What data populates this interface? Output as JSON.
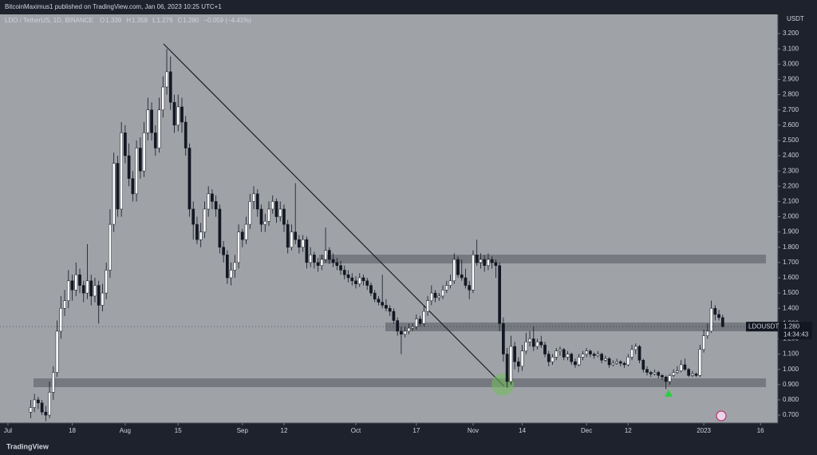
{
  "header": "BitcoinMaximus1 published on TradingView.com, Jan 06, 2023 10:25 UTC+1",
  "footer": "TradingView",
  "chart_data": {
    "type": "candlestick",
    "symbol": "LDO / TetherUS, 1D, BINANCE",
    "legend": [
      {
        "label": "O",
        "value": 1.339
      },
      {
        "label": "H",
        "value": 1.358
      },
      {
        "label": "L",
        "value": 1.276
      },
      {
        "label": "C",
        "value": 1.28,
        "value_label": "1.280"
      }
    ],
    "change": "−0.059 (−4.41%)",
    "y_unit": "USDT",
    "up_color": "#ffffff",
    "down_color": "#131722",
    "ohlc": [
      [
        0.72,
        0.8,
        0.68,
        0.75
      ],
      [
        0.75,
        0.84,
        0.72,
        0.8
      ],
      [
        0.8,
        0.82,
        0.74,
        0.78
      ],
      [
        0.78,
        0.8,
        0.7,
        0.72
      ],
      [
        0.72,
        0.76,
        0.66,
        0.7
      ],
      [
        0.7,
        0.92,
        0.68,
        0.85
      ],
      [
        0.85,
        1.02,
        0.8,
        0.98
      ],
      [
        0.98,
        1.32,
        0.95,
        1.25
      ],
      [
        1.25,
        1.48,
        1.2,
        1.4
      ],
      [
        1.4,
        1.52,
        1.35,
        1.45
      ],
      [
        1.45,
        1.65,
        1.4,
        1.58
      ],
      [
        1.58,
        1.62,
        1.45,
        1.52
      ],
      [
        1.52,
        1.7,
        1.48,
        1.62
      ],
      [
        1.62,
        1.66,
        1.5,
        1.55
      ],
      [
        1.55,
        1.58,
        1.44,
        1.5
      ],
      [
        1.5,
        1.82,
        1.46,
        1.58
      ],
      [
        1.58,
        1.62,
        1.42,
        1.48
      ],
      [
        1.48,
        1.6,
        1.44,
        1.55
      ],
      [
        1.55,
        1.58,
        1.3,
        1.42
      ],
      [
        1.42,
        1.56,
        1.38,
        1.5
      ],
      [
        1.5,
        1.7,
        1.46,
        1.65
      ],
      [
        1.65,
        2.05,
        1.6,
        1.95
      ],
      [
        1.95,
        2.42,
        1.9,
        2.35
      ],
      [
        2.35,
        2.4,
        2.0,
        2.05
      ],
      [
        2.05,
        2.62,
        2.0,
        2.55
      ],
      [
        2.55,
        2.6,
        2.35,
        2.4
      ],
      [
        2.4,
        2.48,
        2.2,
        2.25
      ],
      [
        2.25,
        2.3,
        2.1,
        2.15
      ],
      [
        2.15,
        2.5,
        2.1,
        2.45
      ],
      [
        2.45,
        2.52,
        2.25,
        2.3
      ],
      [
        2.3,
        2.62,
        2.26,
        2.55
      ],
      [
        2.55,
        2.78,
        2.5,
        2.7
      ],
      [
        2.7,
        2.75,
        2.5,
        2.55
      ],
      [
        2.55,
        2.6,
        2.4,
        2.45
      ],
      [
        2.45,
        2.78,
        2.42,
        2.7
      ],
      [
        2.7,
        2.92,
        2.65,
        2.85
      ],
      [
        2.85,
        3.1,
        2.8,
        2.95
      ],
      [
        2.95,
        3.05,
        2.7,
        2.75
      ],
      [
        2.75,
        2.8,
        2.55,
        2.6
      ],
      [
        2.6,
        2.8,
        2.56,
        2.72
      ],
      [
        2.72,
        2.78,
        2.55,
        2.62
      ],
      [
        2.62,
        2.66,
        2.4,
        2.45
      ],
      [
        2.45,
        2.48,
        2.0,
        2.05
      ],
      [
        2.05,
        2.1,
        1.85,
        1.95
      ],
      [
        1.95,
        2.0,
        1.82,
        1.85
      ],
      [
        1.85,
        1.96,
        1.8,
        1.9
      ],
      [
        1.9,
        2.1,
        1.86,
        2.05
      ],
      [
        2.05,
        2.2,
        2.0,
        2.15
      ],
      [
        2.15,
        2.18,
        2.05,
        2.1
      ],
      [
        2.1,
        2.14,
        2.0,
        2.05
      ],
      [
        2.05,
        2.08,
        1.76,
        1.8
      ],
      [
        1.8,
        1.84,
        1.7,
        1.75
      ],
      [
        1.75,
        1.78,
        1.56,
        1.6
      ],
      [
        1.6,
        1.7,
        1.55,
        1.65
      ],
      [
        1.65,
        1.75,
        1.6,
        1.7
      ],
      [
        1.7,
        1.95,
        1.66,
        1.9
      ],
      [
        1.9,
        1.92,
        1.8,
        1.85
      ],
      [
        1.85,
        2.0,
        1.82,
        1.95
      ],
      [
        1.95,
        2.15,
        1.92,
        2.1
      ],
      [
        2.1,
        2.2,
        2.05,
        2.15
      ],
      [
        2.15,
        2.18,
        2.0,
        2.05
      ],
      [
        2.05,
        2.08,
        1.9,
        1.95
      ],
      [
        1.95,
        2.02,
        1.9,
        1.97
      ],
      [
        1.97,
        2.1,
        1.94,
        2.05
      ],
      [
        2.05,
        2.14,
        2.02,
        2.1
      ],
      [
        2.1,
        2.12,
        1.96,
        2.0
      ],
      [
        2.0,
        2.1,
        1.97,
        2.05
      ],
      [
        2.05,
        2.08,
        1.9,
        1.95
      ],
      [
        1.95,
        1.98,
        1.76,
        1.8
      ],
      [
        1.8,
        1.95,
        1.78,
        1.9
      ],
      [
        1.9,
        2.22,
        1.82,
        1.85
      ],
      [
        1.85,
        1.88,
        1.76,
        1.8
      ],
      [
        1.8,
        1.88,
        1.77,
        1.85
      ],
      [
        1.85,
        1.87,
        1.66,
        1.7
      ],
      [
        1.7,
        1.8,
        1.67,
        1.75
      ],
      [
        1.75,
        1.77,
        1.66,
        1.7
      ],
      [
        1.7,
        1.73,
        1.64,
        1.68
      ],
      [
        1.68,
        1.75,
        1.65,
        1.72
      ],
      [
        1.72,
        1.93,
        1.7,
        1.78
      ],
      [
        1.78,
        1.8,
        1.69,
        1.72
      ],
      [
        1.72,
        1.76,
        1.67,
        1.7
      ],
      [
        1.7,
        1.73,
        1.65,
        1.68
      ],
      [
        1.68,
        1.71,
        1.62,
        1.65
      ],
      [
        1.65,
        1.68,
        1.59,
        1.62
      ],
      [
        1.62,
        1.65,
        1.57,
        1.6
      ],
      [
        1.6,
        1.63,
        1.55,
        1.58
      ],
      [
        1.58,
        1.61,
        1.53,
        1.56
      ],
      [
        1.56,
        1.63,
        1.54,
        1.6
      ],
      [
        1.6,
        1.62,
        1.55,
        1.58
      ],
      [
        1.58,
        1.6,
        1.52,
        1.55
      ],
      [
        1.55,
        1.57,
        1.48,
        1.5
      ],
      [
        1.5,
        1.52,
        1.44,
        1.46
      ],
      [
        1.46,
        1.48,
        1.42,
        1.44
      ],
      [
        1.44,
        1.62,
        1.4,
        1.42
      ],
      [
        1.42,
        1.46,
        1.38,
        1.4
      ],
      [
        1.4,
        1.42,
        1.35,
        1.38
      ],
      [
        1.38,
        1.4,
        1.3,
        1.32
      ],
      [
        1.32,
        1.34,
        1.22,
        1.25
      ],
      [
        1.25,
        1.28,
        1.1,
        1.23
      ],
      [
        1.23,
        1.28,
        1.21,
        1.25
      ],
      [
        1.25,
        1.3,
        1.23,
        1.27
      ],
      [
        1.27,
        1.3,
        1.25,
        1.28
      ],
      [
        1.28,
        1.36,
        1.26,
        1.33
      ],
      [
        1.33,
        1.35,
        1.28,
        1.3
      ],
      [
        1.3,
        1.42,
        1.28,
        1.38
      ],
      [
        1.38,
        1.48,
        1.35,
        1.45
      ],
      [
        1.45,
        1.55,
        1.42,
        1.5
      ],
      [
        1.5,
        1.52,
        1.44,
        1.47
      ],
      [
        1.47,
        1.5,
        1.45,
        1.48
      ],
      [
        1.48,
        1.55,
        1.46,
        1.52
      ],
      [
        1.52,
        1.58,
        1.5,
        1.55
      ],
      [
        1.55,
        1.62,
        1.53,
        1.58
      ],
      [
        1.58,
        1.76,
        1.56,
        1.72
      ],
      [
        1.72,
        1.74,
        1.6,
        1.62
      ],
      [
        1.62,
        1.72,
        1.58,
        1.6
      ],
      [
        1.6,
        1.66,
        1.53,
        1.55
      ],
      [
        1.55,
        1.58,
        1.46,
        1.52
      ],
      [
        1.52,
        1.78,
        1.5,
        1.75
      ],
      [
        1.75,
        1.85,
        1.68,
        1.7
      ],
      [
        1.7,
        1.76,
        1.66,
        1.72
      ],
      [
        1.72,
        1.75,
        1.64,
        1.68
      ],
      [
        1.68,
        1.76,
        1.65,
        1.72
      ],
      [
        1.72,
        1.74,
        1.66,
        1.7
      ],
      [
        1.7,
        1.72,
        1.6,
        1.68
      ],
      [
        1.68,
        1.7,
        1.25,
        1.3
      ],
      [
        1.3,
        1.34,
        1.05,
        1.1
      ],
      [
        1.1,
        1.14,
        0.88,
        0.92
      ],
      [
        0.92,
        1.22,
        0.9,
        1.15
      ],
      [
        1.15,
        1.18,
        1.0,
        1.05
      ],
      [
        1.05,
        1.08,
        0.98,
        1.02
      ],
      [
        1.02,
        1.16,
        0.99,
        1.12
      ],
      [
        1.12,
        1.24,
        1.1,
        1.18
      ],
      [
        1.18,
        1.25,
        1.15,
        1.2
      ],
      [
        1.2,
        1.28,
        1.12,
        1.15
      ],
      [
        1.15,
        1.2,
        1.13,
        1.18
      ],
      [
        1.18,
        1.22,
        1.14,
        1.16
      ],
      [
        1.16,
        1.18,
        1.08,
        1.1
      ],
      [
        1.1,
        1.12,
        1.02,
        1.05
      ],
      [
        1.05,
        1.1,
        1.03,
        1.08
      ],
      [
        1.08,
        1.14,
        1.06,
        1.12
      ],
      [
        1.12,
        1.15,
        1.09,
        1.13
      ],
      [
        1.13,
        1.14,
        1.06,
        1.08
      ],
      [
        1.08,
        1.12,
        1.06,
        1.1
      ],
      [
        1.1,
        1.11,
        1.03,
        1.05
      ],
      [
        1.05,
        1.07,
        1.01,
        1.03
      ],
      [
        1.03,
        1.1,
        1.02,
        1.08
      ],
      [
        1.08,
        1.12,
        1.06,
        1.1
      ],
      [
        1.1,
        1.14,
        1.08,
        1.12
      ],
      [
        1.12,
        1.13,
        1.08,
        1.1
      ],
      [
        1.1,
        1.11,
        1.07,
        1.09
      ],
      [
        1.09,
        1.12,
        1.08,
        1.1
      ],
      [
        1.1,
        1.11,
        1.04,
        1.06
      ],
      [
        1.06,
        1.09,
        1.05,
        1.07
      ],
      [
        1.07,
        1.08,
        1.01,
        1.03
      ],
      [
        1.03,
        1.06,
        1.02,
        1.04
      ],
      [
        1.04,
        1.07,
        1.03,
        1.05
      ],
      [
        1.05,
        1.06,
        1.02,
        1.04
      ],
      [
        1.04,
        1.05,
        1.01,
        1.03
      ],
      [
        1.03,
        1.1,
        1.02,
        1.08
      ],
      [
        1.08,
        1.16,
        1.06,
        1.13
      ],
      [
        1.13,
        1.17,
        1.1,
        1.15
      ],
      [
        1.15,
        1.16,
        1.04,
        1.06
      ],
      [
        1.06,
        1.07,
        0.98,
        1.0
      ],
      [
        1.0,
        1.02,
        0.96,
        0.98
      ],
      [
        0.98,
        0.99,
        0.95,
        0.97
      ],
      [
        0.97,
        1.0,
        0.96,
        0.98
      ],
      [
        0.98,
        0.99,
        0.94,
        0.96
      ],
      [
        0.96,
        0.97,
        0.93,
        0.95
      ],
      [
        0.95,
        0.96,
        0.87,
        0.92
      ],
      [
        0.92,
        0.97,
        0.9,
        0.96
      ],
      [
        0.96,
        1.0,
        0.95,
        0.98
      ],
      [
        0.98,
        1.02,
        0.97,
        0.99
      ],
      [
        0.99,
        1.06,
        0.98,
        1.03
      ],
      [
        1.03,
        1.07,
        0.99,
        1.0
      ],
      [
        1.0,
        1.01,
        0.95,
        0.96
      ],
      [
        0.96,
        0.99,
        0.95,
        0.97
      ],
      [
        0.97,
        0.98,
        0.95,
        0.96
      ],
      [
        0.96,
        1.16,
        0.95,
        1.13
      ],
      [
        1.13,
        1.26,
        1.11,
        1.22
      ],
      [
        1.22,
        1.3,
        1.2,
        1.25
      ],
      [
        1.25,
        1.45,
        1.24,
        1.4
      ],
      [
        1.4,
        1.42,
        1.32,
        1.36
      ],
      [
        1.36,
        1.39,
        1.32,
        1.339
      ],
      [
        1.339,
        1.358,
        1.276,
        1.28
      ]
    ],
    "xlim": [
      -8.1,
      197.6
    ],
    "xticks": [
      {
        "value": -6,
        "label": "Jul"
      },
      {
        "value": 11,
        "label": "18"
      },
      {
        "value": 25,
        "label": "Aug"
      },
      {
        "value": 39,
        "label": "15"
      },
      {
        "value": 56,
        "label": "Sep"
      },
      {
        "value": 67,
        "label": "12"
      },
      {
        "value": 86,
        "label": "Oct"
      },
      {
        "value": 102,
        "label": "17"
      },
      {
        "value": 117,
        "label": "Nov"
      },
      {
        "value": 130,
        "label": "14"
      },
      {
        "value": 147,
        "label": "Dec"
      },
      {
        "value": 158,
        "label": "12"
      },
      {
        "value": 178,
        "label": "2023"
      },
      {
        "value": 193,
        "label": "16"
      }
    ],
    "ylim": [
      0.648,
      3.326
    ],
    "yticks": [
      {
        "value": 3.2,
        "label": "3.200"
      },
      {
        "value": 3.1,
        "label": "3.100"
      },
      {
        "value": 3.0,
        "label": "3.000"
      },
      {
        "value": 2.9,
        "label": "2.900"
      },
      {
        "value": 2.8,
        "label": "2.800"
      },
      {
        "value": 2.7,
        "label": "2.700"
      },
      {
        "value": 2.6,
        "label": "2.600"
      },
      {
        "value": 2.5,
        "label": "2.500"
      },
      {
        "value": 2.4,
        "label": "2.400"
      },
      {
        "value": 2.3,
        "label": "2.300"
      },
      {
        "value": 2.2,
        "label": "2.200"
      },
      {
        "value": 2.1,
        "label": "2.100"
      },
      {
        "value": 2.0,
        "label": "2.000"
      },
      {
        "value": 1.9,
        "label": "1.900"
      },
      {
        "value": 1.8,
        "label": "1.800"
      },
      {
        "value": 1.7,
        "label": "1.700"
      },
      {
        "value": 1.6,
        "label": "1.600"
      },
      {
        "value": 1.5,
        "label": "1.500"
      },
      {
        "value": 1.4,
        "label": "1.400"
      },
      {
        "value": 1.3,
        "label": "1.300"
      },
      {
        "value": 1.2,
        "label": "1.200"
      },
      {
        "value": 1.1,
        "label": "1.100"
      },
      {
        "value": 1.0,
        "label": "1.000"
      },
      {
        "value": 0.9,
        "label": "0.900"
      },
      {
        "value": 0.8,
        "label": "0.800"
      },
      {
        "value": 0.7,
        "label": "0.700"
      }
    ],
    "last_price": {
      "name": "LDOUSDT",
      "value": 1.28,
      "label": "1.280",
      "countdown": "14:34:43"
    }
  }
}
